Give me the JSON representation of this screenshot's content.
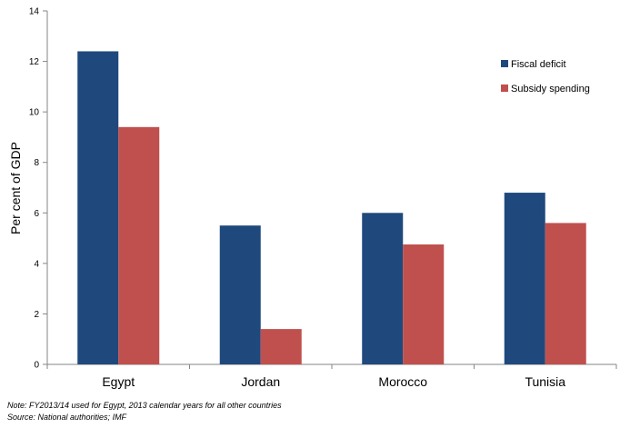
{
  "chart_data": {
    "type": "bar",
    "categories": [
      "Egypt",
      "Jordan",
      "Morocco",
      "Tunisia"
    ],
    "series": [
      {
        "name": "Fiscal deficit",
        "values": [
          12.4,
          5.5,
          6.0,
          6.8
        ],
        "color": "#1f497d"
      },
      {
        "name": "Subsidy spending",
        "values": [
          9.4,
          1.4,
          4.75,
          5.6
        ],
        "color": "#c0504d"
      }
    ],
    "title": "",
    "xlabel": "",
    "ylabel": "Per cent of GDP",
    "ylim": [
      0,
      14
    ],
    "yticks": [
      0,
      2,
      4,
      6,
      8,
      10,
      12,
      14
    ],
    "grid": false,
    "legend_position": "top-right"
  },
  "notes": {
    "note": "Note: FY2013/14 used for Egypt, 2013 calendar years for all other countries",
    "source": "Source: National authorities; IMF"
  }
}
